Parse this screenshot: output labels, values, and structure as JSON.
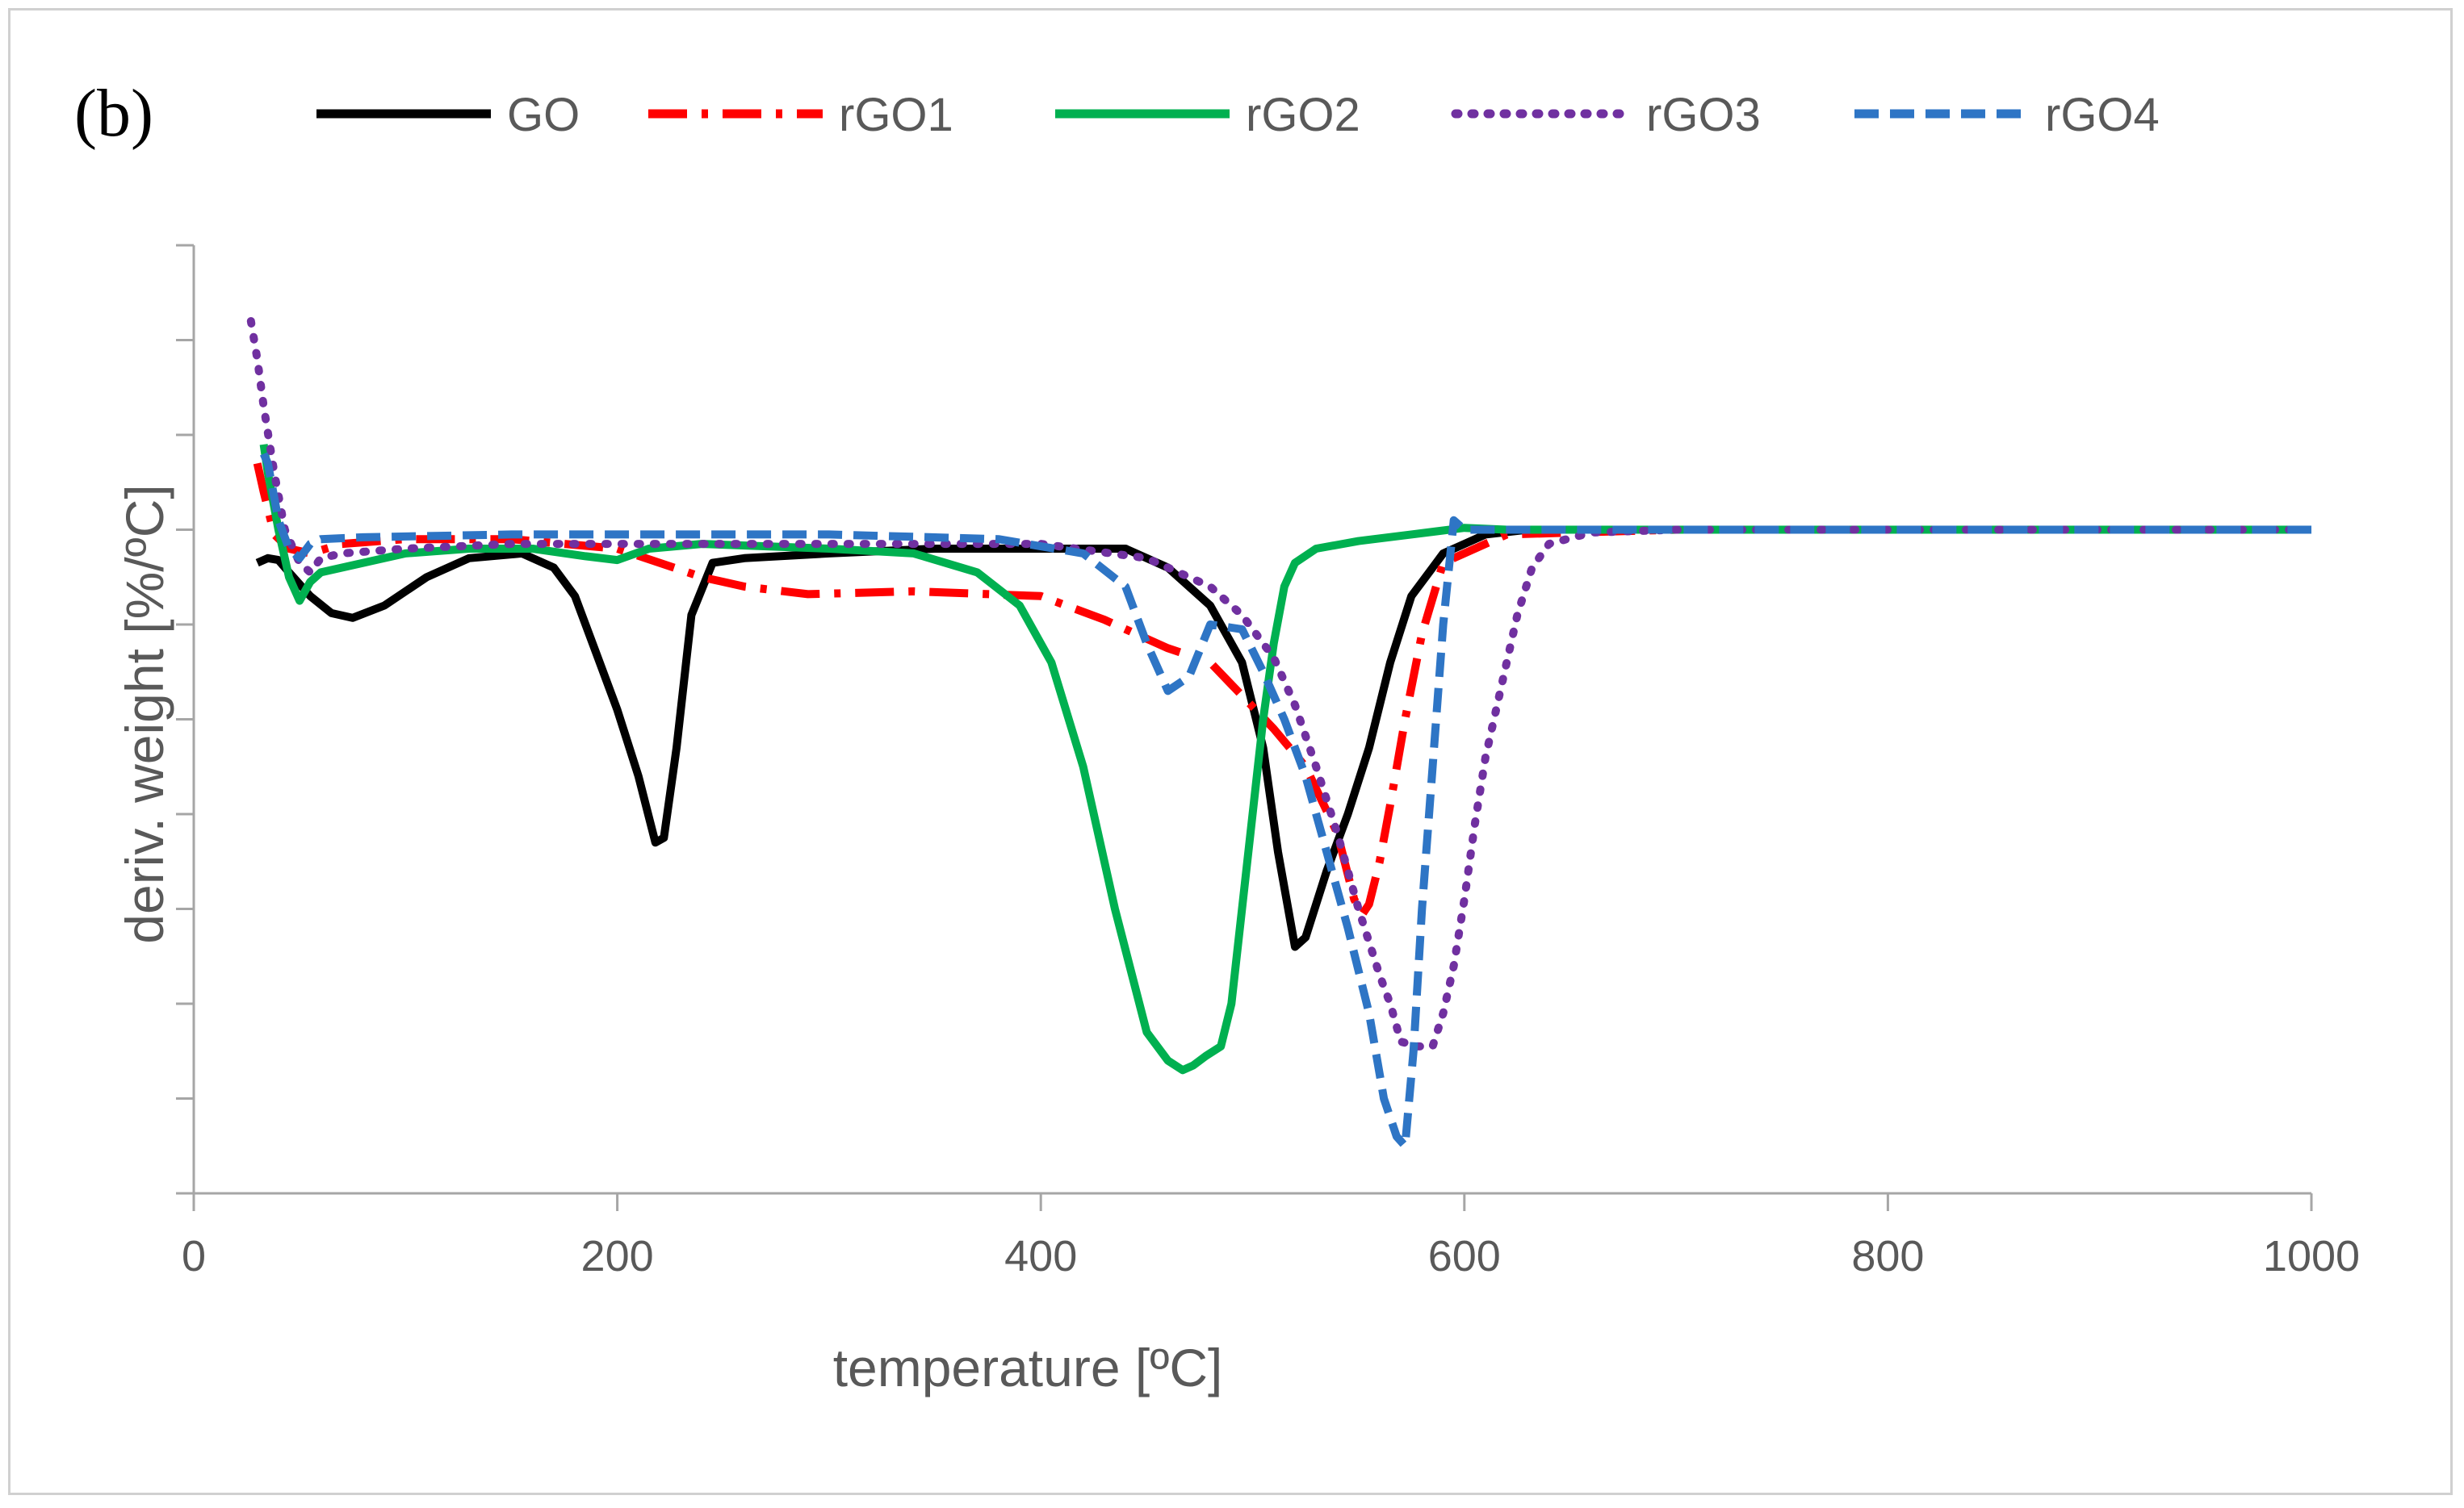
{
  "chart_data": {
    "type": "line",
    "panel_label": "(b)",
    "title": "",
    "xlabel": "temperature [ºC]",
    "ylabel": "deriv. weight [%/ºC]",
    "xlim": [
      0,
      1000
    ],
    "ylim": [
      -7,
      3
    ],
    "xticks": [
      0,
      200,
      400,
      600,
      800,
      1000
    ],
    "xtick_labels": [
      "0",
      "200",
      "400",
      "600",
      "800",
      "1000"
    ],
    "yticks": [
      -7,
      -6,
      -5,
      -4,
      -3,
      -2,
      -1,
      0,
      1,
      2,
      3
    ],
    "ytick_labels_visible": false,
    "grid": false,
    "legend_position": "top",
    "series": [
      {
        "name": "GO",
        "color": "#000000",
        "dash": "solid",
        "x": [
          30,
          35,
          40,
          45,
          55,
          65,
          75,
          90,
          110,
          130,
          155,
          170,
          180,
          190,
          200,
          210,
          218,
          222,
          228,
          235,
          245,
          260,
          300,
          350,
          400,
          440,
          460,
          480,
          495,
          505,
          512,
          520,
          525,
          535,
          545,
          555,
          565,
          575,
          590,
          610,
          630,
          700,
          800,
          900,
          1000
        ],
        "y": [
          -0.35,
          -0.3,
          -0.32,
          -0.45,
          -0.7,
          -0.88,
          -0.93,
          -0.8,
          -0.5,
          -0.3,
          -0.25,
          -0.4,
          -0.7,
          -1.3,
          -1.9,
          -2.6,
          -3.3,
          -3.25,
          -2.3,
          -0.9,
          -0.35,
          -0.3,
          -0.25,
          -0.2,
          -0.2,
          -0.2,
          -0.4,
          -0.8,
          -1.4,
          -2.3,
          -3.4,
          -4.4,
          -4.3,
          -3.6,
          -3.0,
          -2.3,
          -1.4,
          -0.7,
          -0.25,
          -0.05,
          0,
          0,
          0,
          0,
          0
        ]
      },
      {
        "name": "rGO1",
        "color": "#ff0000",
        "dash": "dashdot",
        "x": [
          30,
          33,
          38,
          45,
          55,
          70,
          100,
          150,
          200,
          220,
          240,
          260,
          290,
          340,
          400,
          430,
          460,
          480,
          495,
          510,
          525,
          540,
          548,
          552,
          555,
          560,
          565,
          572,
          580,
          590,
          620,
          700,
          800,
          1000
        ],
        "y": [
          0.7,
          0.4,
          -0.05,
          -0.2,
          -0.25,
          -0.15,
          -0.1,
          -0.1,
          -0.2,
          -0.35,
          -0.5,
          -0.6,
          -0.68,
          -0.65,
          -0.7,
          -0.95,
          -1.25,
          -1.4,
          -1.75,
          -2.1,
          -2.5,
          -3.2,
          -3.9,
          -4.05,
          -3.95,
          -3.5,
          -2.9,
          -2.0,
          -1.1,
          -0.35,
          -0.05,
          0,
          0,
          0
        ]
      },
      {
        "name": "rGO2",
        "color": "#00b050",
        "dash": "solid",
        "x": [
          33,
          35,
          40,
          45,
          50,
          55,
          60,
          80,
          100,
          130,
          160,
          185,
          200,
          215,
          240,
          300,
          340,
          370,
          390,
          405,
          420,
          435,
          450,
          460,
          467,
          472,
          478,
          485,
          490,
          495,
          500,
          505,
          510,
          515,
          520,
          530,
          550,
          575,
          600,
          620,
          700,
          800,
          1000
        ],
        "y": [
          0.9,
          0.6,
          0.0,
          -0.5,
          -0.75,
          -0.55,
          -0.45,
          -0.35,
          -0.25,
          -0.2,
          -0.2,
          -0.28,
          -0.32,
          -0.2,
          -0.15,
          -0.2,
          -0.25,
          -0.45,
          -0.8,
          -1.4,
          -2.5,
          -4.0,
          -5.3,
          -5.6,
          -5.7,
          -5.65,
          -5.55,
          -5.45,
          -5.0,
          -4.0,
          -3.0,
          -2.0,
          -1.2,
          -0.6,
          -0.35,
          -0.2,
          -0.12,
          -0.05,
          0.02,
          0,
          0,
          0,
          0
        ]
      },
      {
        "name": "rGO3",
        "color": "#7030a0",
        "dash": "dotted",
        "x": [
          27,
          30,
          33,
          38,
          43,
          50,
          55,
          60,
          70,
          100,
          150,
          200,
          300,
          400,
          450,
          480,
          495,
          510,
          520,
          530,
          540,
          550,
          560,
          565,
          570,
          578,
          585,
          590,
          595,
          600,
          605,
          610,
          618,
          625,
          632,
          640,
          660,
          700,
          800,
          1000
        ],
        "y": [
          2.2,
          1.8,
          1.3,
          0.6,
          0.0,
          -0.35,
          -0.45,
          -0.3,
          -0.25,
          -0.2,
          -0.15,
          -0.15,
          -0.15,
          -0.15,
          -0.3,
          -0.6,
          -0.9,
          -1.35,
          -1.85,
          -2.5,
          -3.2,
          -4.0,
          -4.7,
          -5.0,
          -5.4,
          -5.45,
          -5.45,
          -5.1,
          -4.6,
          -3.9,
          -3.1,
          -2.4,
          -1.6,
          -0.9,
          -0.4,
          -0.15,
          -0.03,
          0,
          0,
          0
        ]
      },
      {
        "name": "rGO4",
        "color": "#2e75c5",
        "dash": "dashed",
        "x": [
          33,
          35,
          40,
          45,
          50,
          55,
          60,
          80,
          150,
          300,
          380,
          420,
          440,
          450,
          460,
          470,
          480,
          495,
          505,
          515,
          525,
          535,
          545,
          555,
          562,
          568,
          572,
          576,
          580,
          585,
          590,
          595,
          600,
          620,
          700,
          1000
        ],
        "y": [
          0.8,
          0.7,
          0.1,
          -0.2,
          -0.3,
          -0.15,
          -0.1,
          -0.08,
          -0.05,
          -0.05,
          -0.1,
          -0.25,
          -0.6,
          -1.2,
          -1.7,
          -1.55,
          -1.0,
          -1.05,
          -1.5,
          -2.0,
          -2.6,
          -3.4,
          -4.2,
          -5.1,
          -6.0,
          -6.4,
          -6.5,
          -5.5,
          -4.0,
          -2.5,
          -1.0,
          0.1,
          0.0,
          0.0,
          0,
          0
        ]
      }
    ]
  }
}
